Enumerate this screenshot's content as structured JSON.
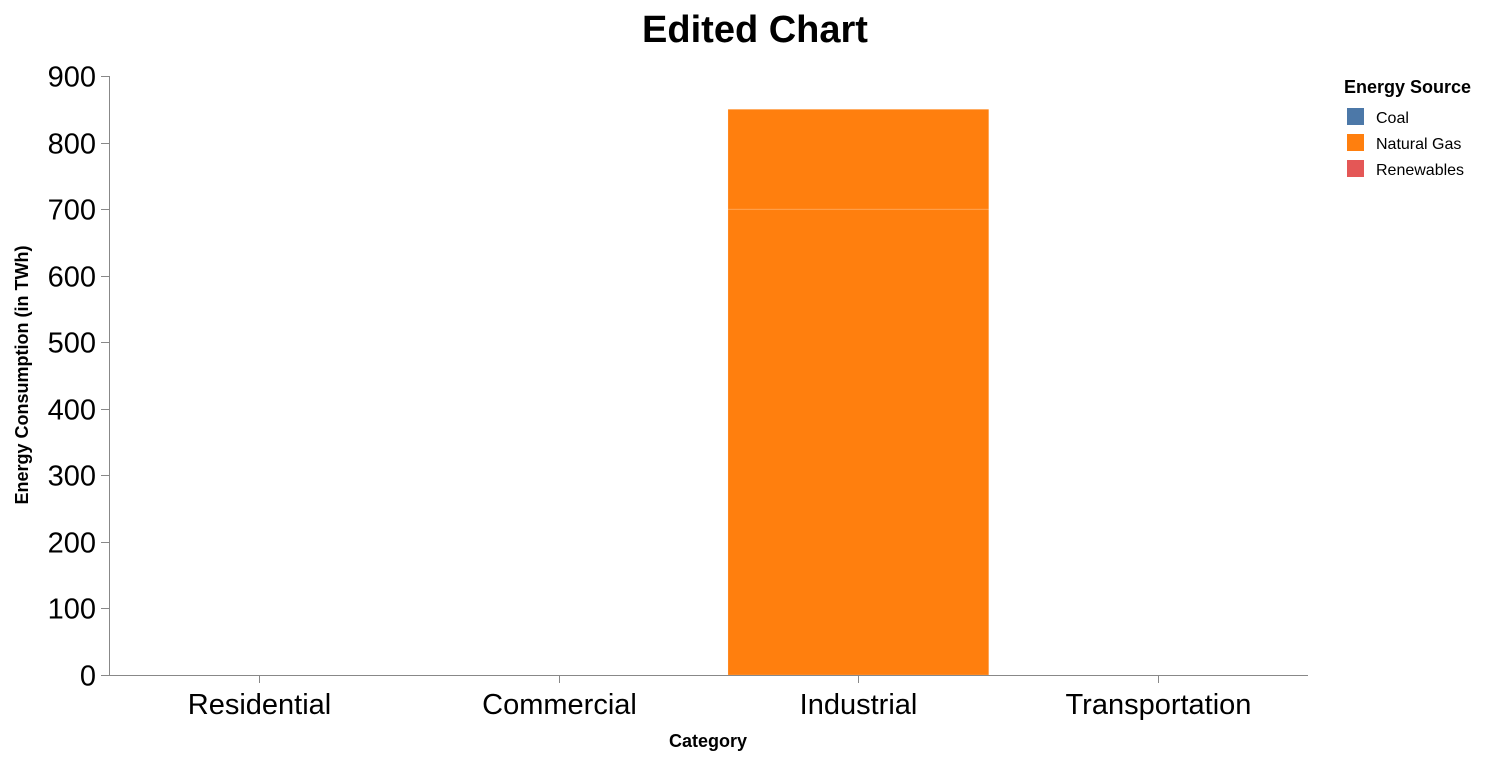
{
  "chart_data": {
    "type": "bar",
    "stacked": true,
    "title": "Edited Chart",
    "xlabel": "Category",
    "ylabel": "Energy Consumption (in TWh)",
    "categories": [
      "Residential",
      "Commercial",
      "Industrial",
      "Transportation"
    ],
    "ylim": [
      0,
      900
    ],
    "yticks": [
      "0",
      "100",
      "200",
      "300",
      "400",
      "500",
      "600",
      "700",
      "800",
      "900"
    ],
    "grid": false,
    "legend": {
      "title": "Energy Source",
      "placement": "top-right"
    },
    "series": [
      {
        "name": "Coal",
        "color": "#4c78a8",
        "values": [
          0,
          0,
          0,
          0
        ]
      },
      {
        "name": "Natural Gas",
        "color": "#ff7f0e",
        "values": [
          0,
          0,
          850,
          0
        ],
        "segments": {
          "Industrial": [
            700,
            150
          ]
        }
      },
      {
        "name": "Renewables",
        "color": "#e45756",
        "values": [
          0,
          0,
          0,
          0
        ]
      }
    ]
  }
}
